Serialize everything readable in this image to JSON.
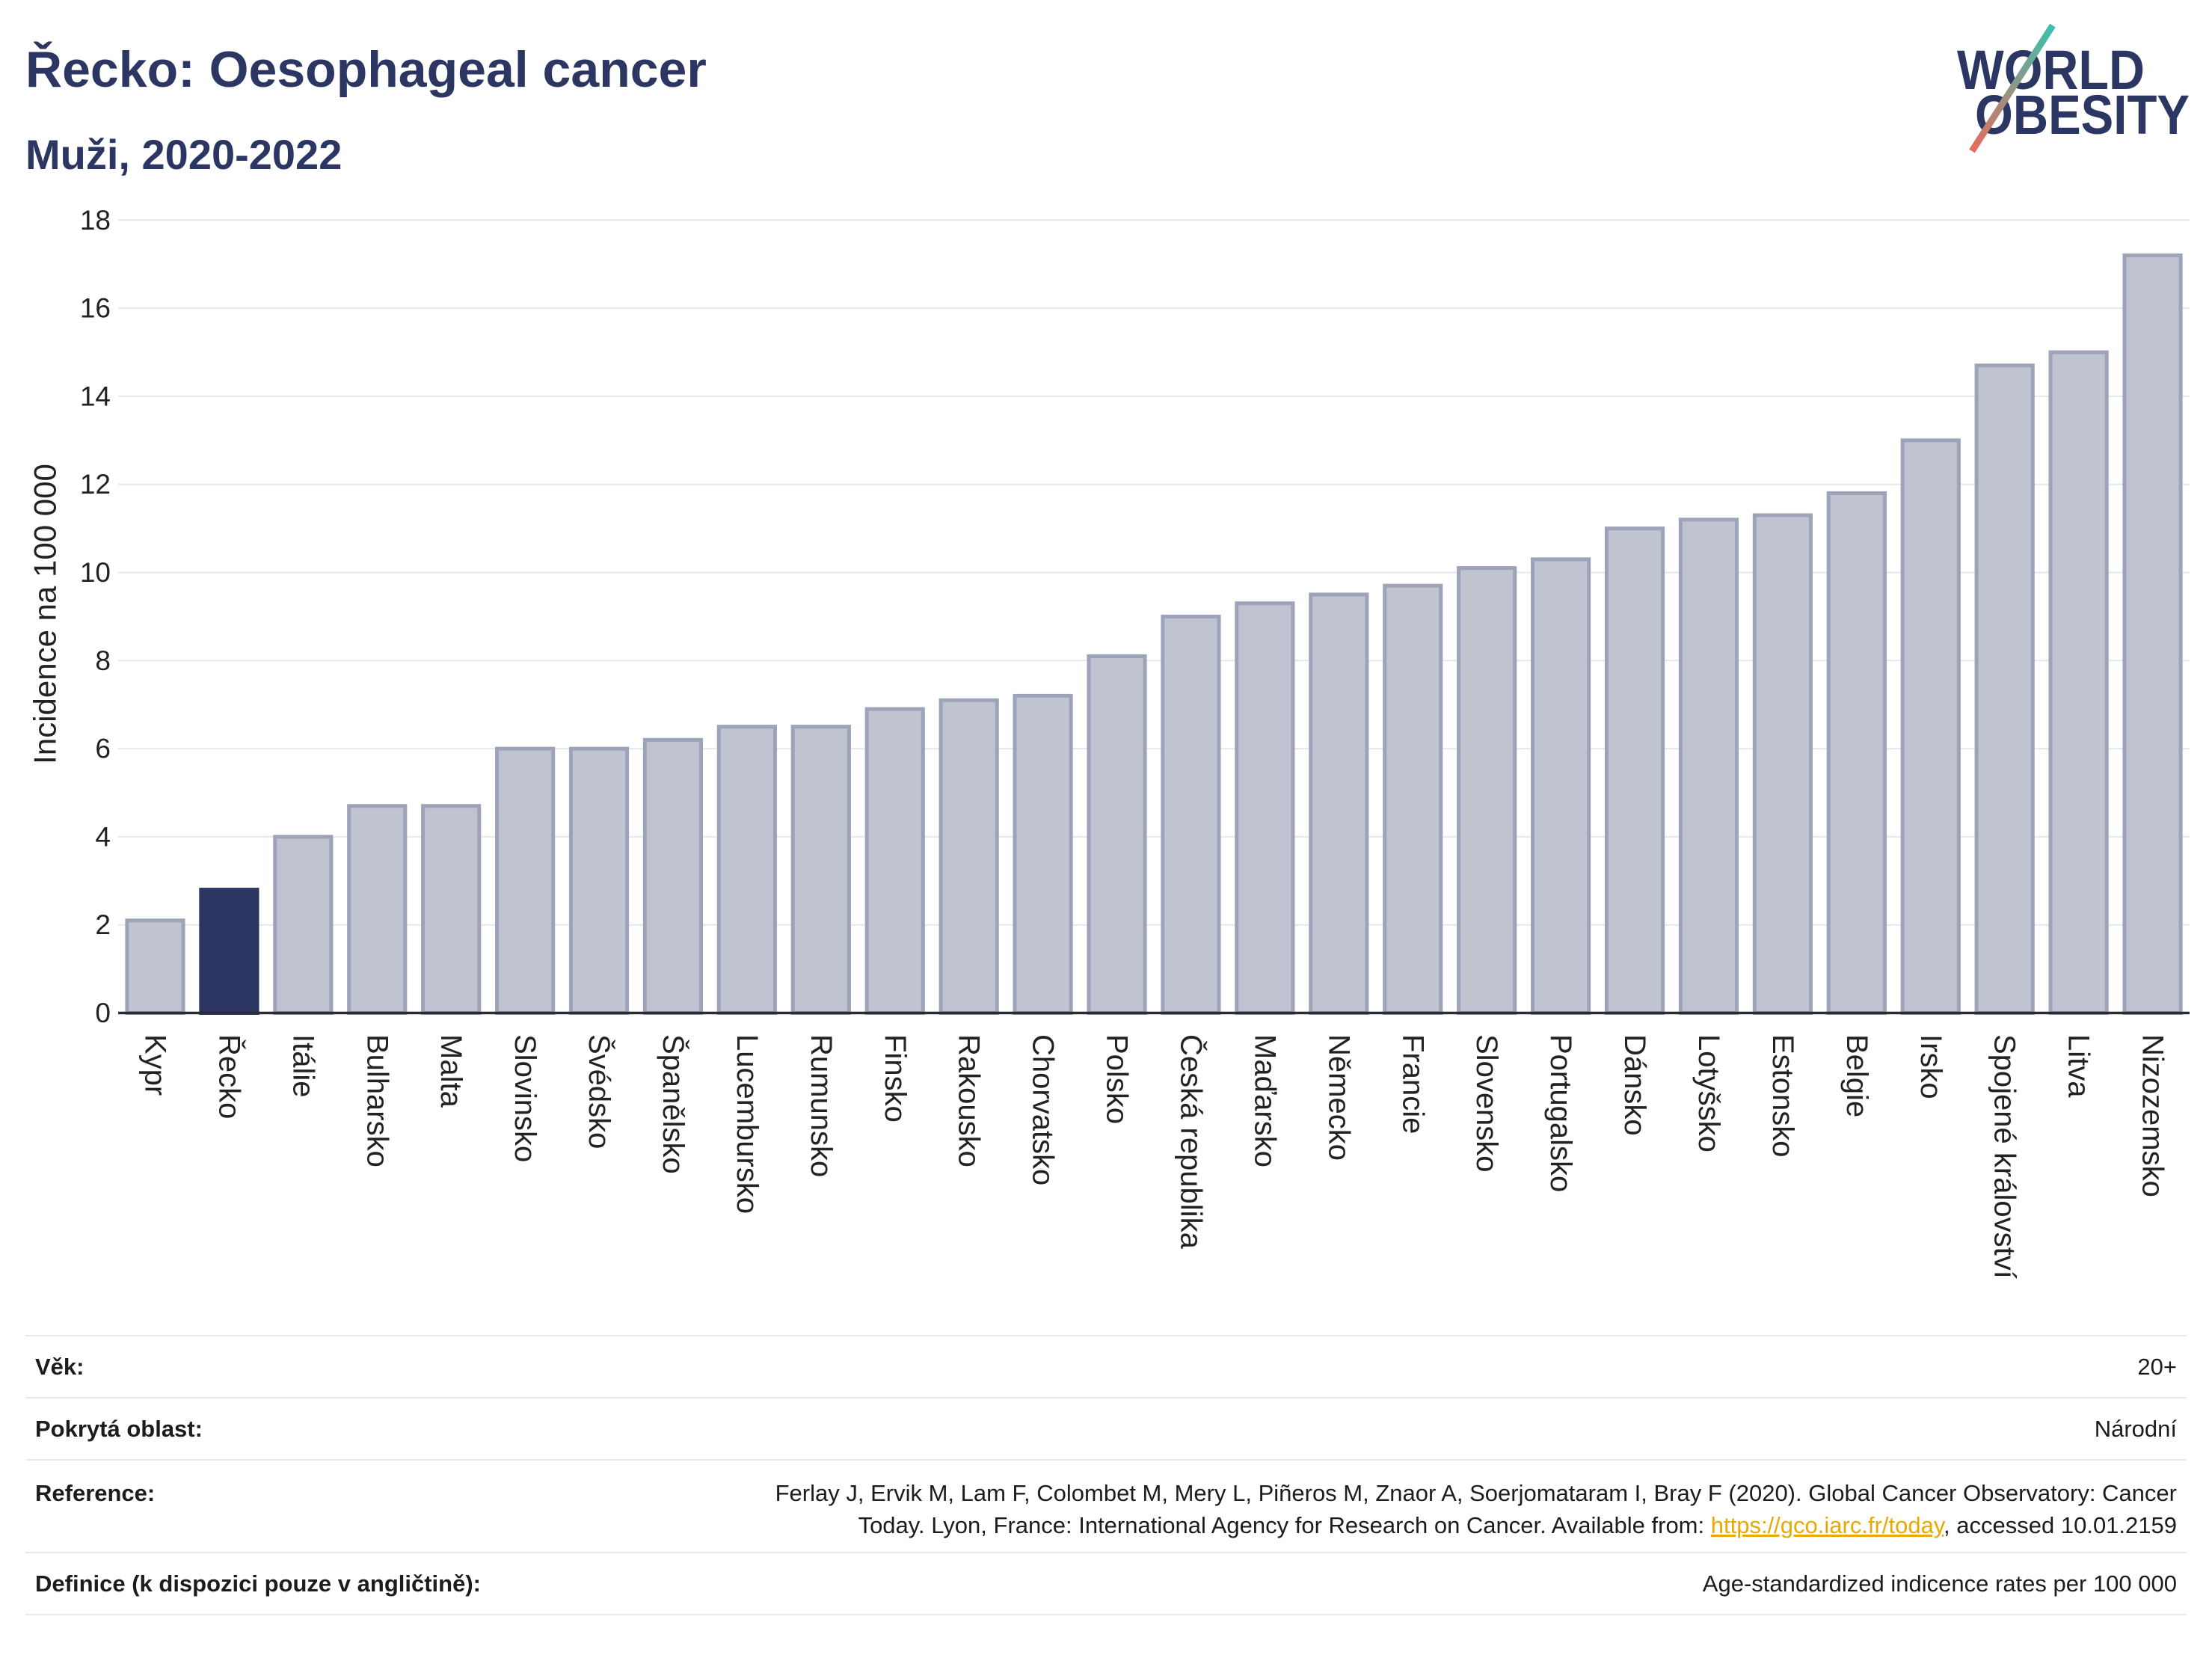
{
  "chart_data": {
    "type": "bar",
    "title": "Řecko: Oesophageal cancer",
    "subtitle": "Muži, 2020-2022",
    "xlabel": "",
    "ylabel": "Incidence na 100 000",
    "ylim": [
      0,
      18
    ],
    "yticks": [
      0,
      2,
      4,
      6,
      8,
      10,
      12,
      14,
      16,
      18
    ],
    "grid": true,
    "highlight_index": 1,
    "categories": [
      "Kypr",
      "Řecko",
      "Itálie",
      "Bulharsko",
      "Malta",
      "Slovinsko",
      "Švédsko",
      "Španělsko",
      "Lucembursko",
      "Rumunsko",
      "Finsko",
      "Rakousko",
      "Chorvatsko",
      "Polsko",
      "Česká republika",
      "Maďarsko",
      "Německo",
      "Francie",
      "Slovensko",
      "Portugalsko",
      "Dánsko",
      "Lotyšsko",
      "Estonsko",
      "Belgie",
      "Irsko",
      "Spojené království",
      "Litva",
      "Nizozemsko"
    ],
    "values": [
      2.1,
      2.8,
      4.0,
      4.7,
      4.7,
      6.0,
      6.0,
      6.2,
      6.5,
      6.5,
      6.9,
      7.1,
      7.2,
      8.1,
      9.0,
      9.3,
      9.5,
      9.7,
      10.1,
      10.3,
      11.0,
      11.2,
      11.3,
      11.8,
      13.0,
      14.7,
      15.0,
      17.2
    ],
    "colors": {
      "bar": "#c0c3d0",
      "bar_border": "#9da3b9",
      "highlight": "#2c3662",
      "axis": "#2a2a35",
      "grid": "#e6e7ed"
    }
  },
  "logo": {
    "line1": "WORLD",
    "line2": "OBESITY",
    "colors": {
      "text": "#2c3662",
      "slash_top": "#3cc0ae",
      "slash_bottom": "#e86a5c"
    }
  },
  "info_table": {
    "rows": [
      {
        "label": "Věk:",
        "value": "20+"
      },
      {
        "label": "Pokrytá oblast:",
        "value": "Národní"
      },
      {
        "label": "Reference:",
        "line1": "Ferlay J, Ervik M, Lam F, Colombet M, Mery L, Piñeros M, Znaor A, Soerjomataram I, Bray F (2020). Global Cancer Observatory: Cancer",
        "line2_before": "Today. Lyon, France: International Agency for Research on Cancer. Available from: ",
        "link": "https://gco.iarc.fr/today",
        "line2_after": ", accessed 10.01.2159"
      },
      {
        "label": "Definice (k dispozici pouze v angličtině):",
        "value": "Age-standardized indicence rates per 100 000"
      }
    ]
  },
  "theme": {
    "title_color": "#2c3662",
    "link_color": "#e8a900"
  }
}
